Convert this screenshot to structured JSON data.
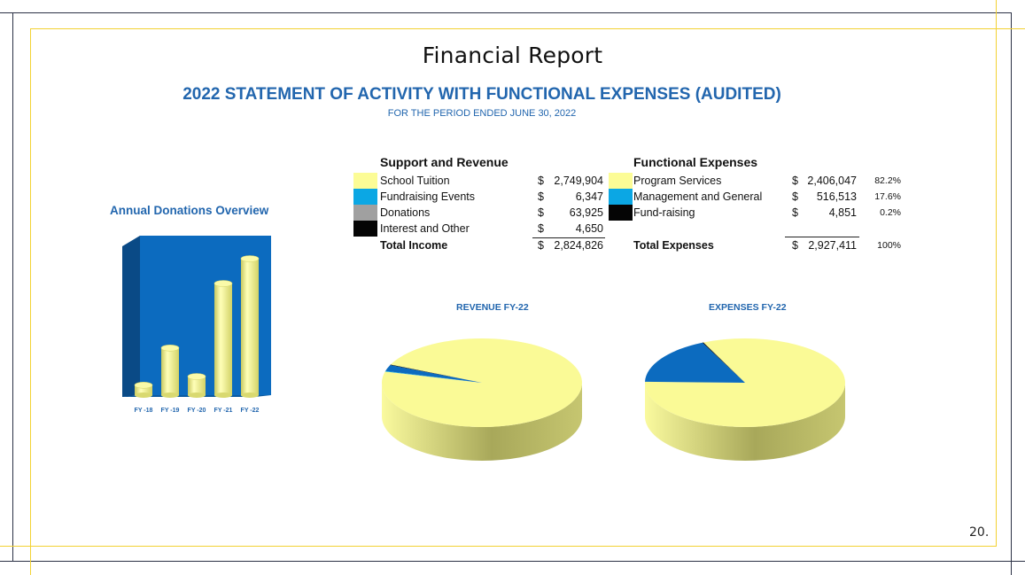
{
  "page": {
    "title": "Financial Report",
    "statement_title": "2022 STATEMENT OF ACTIVITY WITH FUNCTIONAL EXPENSES (AUDITED)",
    "statement_subtitle": "FOR THE PERIOD ENDED JUNE 30, 2022",
    "page_number": "20."
  },
  "colors": {
    "frame": "#2b3145",
    "gold": "#f2d233",
    "accent_blue": "#2266ae",
    "pie_yellow": "#fafa96",
    "bar_blue": "#0c6bbf"
  },
  "revenue": {
    "heading": "Support and Revenue",
    "items": [
      {
        "label": "School Tuition",
        "dollar": "$",
        "amount": "2,749,904",
        "swatch": "#fcfc96"
      },
      {
        "label": "Fundraising Events",
        "dollar": "$",
        "amount": "6,347",
        "swatch": "#0ba7e4"
      },
      {
        "label": "Donations",
        "dollar": "$",
        "amount": "63,925",
        "swatch": "#a0a0a0"
      },
      {
        "label": "Interest and Other",
        "dollar": "$",
        "amount": "4,650",
        "swatch": "#050505"
      }
    ],
    "total_label": "Total Income",
    "total_dollar": "$",
    "total_amount": "2,824,826"
  },
  "expenses": {
    "heading": "Functional Expenses",
    "items": [
      {
        "label": "Program Services",
        "dollar": "$",
        "amount": "2,406,047",
        "pct": "82.2%",
        "swatch": "#fcfc96"
      },
      {
        "label": "Management and General",
        "dollar": "$",
        "amount": "516,513",
        "pct": "17.6%",
        "swatch": "#0ba7e4"
      },
      {
        "label": "Fund-raising",
        "dollar": "$",
        "amount": "4,851",
        "pct": "0.2%",
        "swatch": "#050505"
      }
    ],
    "total_label": "Total Expenses",
    "total_dollar": "$",
    "total_amount": "2,927,411",
    "total_pct": "100%"
  },
  "donations_chart": {
    "title": "Annual Donations Overview"
  },
  "revenue_pie": {
    "title": "REVENUE FY-22"
  },
  "expenses_pie": {
    "title": "EXPENSES FY-22"
  },
  "chart_data": [
    {
      "type": "bar",
      "title": "Annual Donations Overview",
      "categories": [
        "FY -18",
        "FY -19",
        "FY -20",
        "FY -21",
        "FY -22"
      ],
      "values": [
        8,
        38,
        15,
        90,
        110
      ],
      "style": "3d-cylinder",
      "ylim": [
        0,
        120
      ],
      "grid": false,
      "legend": "none",
      "colors": {
        "bar": "#f7f78c",
        "background": "#0c6bbf"
      }
    },
    {
      "type": "pie",
      "title": "REVENUE FY-22",
      "labels": [
        "School Tuition",
        "Fundraising Events",
        "Donations",
        "Interest and Other"
      ],
      "values": [
        2749904,
        6347,
        63925,
        4650
      ],
      "colors": [
        "#fafa96",
        "#0ba7e4",
        "#0c6bbf",
        "#050505"
      ],
      "style": "3d"
    },
    {
      "type": "pie",
      "title": "EXPENSES FY-22",
      "labels": [
        "Program Services",
        "Management and General",
        "Fund-raising"
      ],
      "values": [
        2406047,
        516513,
        4851
      ],
      "colors": [
        "#fafa96",
        "#0c6bbf",
        "#050505"
      ],
      "style": "3d"
    }
  ]
}
